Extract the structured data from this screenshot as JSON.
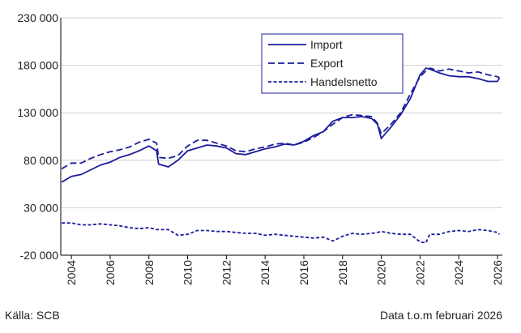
{
  "chart_data": {
    "type": "line",
    "x": [
      2003.5,
      2004,
      2004.5,
      2005,
      2005.5,
      2006,
      2006.5,
      2007,
      2007.5,
      2008,
      2008.4,
      2008.5,
      2009,
      2009.5,
      2010,
      2010.5,
      2011,
      2011.5,
      2012,
      2012.5,
      2013,
      2013.5,
      2014,
      2014.5,
      2015,
      2015.5,
      2016,
      2016.5,
      2017,
      2017.5,
      2018,
      2018.5,
      2019,
      2019.5,
      2019.8,
      2020,
      2020.5,
      2021,
      2021.5,
      2022,
      2022.3,
      2022.5,
      2023,
      2023.5,
      2024,
      2024.5,
      2025,
      2025.5,
      2026,
      2026.1
    ],
    "series": [
      {
        "name": "Import",
        "color": "#1c1c9c",
        "dash": "solid",
        "values": [
          57000,
          63000,
          65000,
          70000,
          75000,
          78000,
          83000,
          86000,
          90000,
          95000,
          90000,
          76000,
          73000,
          80000,
          90000,
          93000,
          96000,
          95000,
          93000,
          87000,
          86000,
          89000,
          92000,
          94000,
          97000,
          96000,
          100000,
          106000,
          110000,
          121000,
          125000,
          125000,
          126000,
          124000,
          118000,
          103000,
          115000,
          128000,
          145000,
          170000,
          177000,
          176000,
          172000,
          169000,
          168000,
          168000,
          166000,
          163000,
          163000,
          167000
        ]
      },
      {
        "name": "Export",
        "color": "#1c1c9c",
        "dash": "dashed",
        "values": [
          71000,
          77000,
          77000,
          82000,
          86000,
          89000,
          91000,
          94000,
          99000,
          102000,
          98000,
          83000,
          82000,
          85000,
          95000,
          101000,
          101000,
          98000,
          95000,
          90000,
          89000,
          92000,
          94000,
          97000,
          98000,
          96000,
          99000,
          104000,
          110000,
          118000,
          125000,
          128000,
          127000,
          126000,
          119000,
          108000,
          118000,
          130000,
          150000,
          168000,
          174000,
          177000,
          174000,
          176000,
          174000,
          172000,
          173000,
          170000,
          168000,
          167000
        ]
      },
      {
        "name": "Handelsnetto",
        "color": "#1c1c9c",
        "dash": "dotted",
        "values": [
          14000,
          14000,
          12000,
          12000,
          13000,
          12000,
          11000,
          9000,
          8000,
          9000,
          7000,
          7000,
          7000,
          1000,
          2000,
          6000,
          6000,
          5000,
          5000,
          4000,
          3000,
          3000,
          1000,
          2000,
          1000,
          0,
          -1000,
          -2000,
          -1000,
          -5000,
          0,
          3000,
          2000,
          3000,
          4000,
          5000,
          3000,
          2000,
          2000,
          -6000,
          -7000,
          2000,
          2000,
          5000,
          6000,
          5000,
          7000,
          6000,
          4000,
          2000
        ]
      }
    ],
    "xlim": [
      2003.45,
      2026.25
    ],
    "xticks": [
      2004,
      2006,
      2008,
      2010,
      2012,
      2014,
      2016,
      2018,
      2020,
      2022,
      2024,
      2026
    ],
    "ylim": [
      -20000,
      230000
    ],
    "yticks": [
      {
        "value": -20000,
        "label": "-20 000"
      },
      {
        "value": 30000,
        "label": "30 000"
      },
      {
        "value": 80000,
        "label": "80 000"
      },
      {
        "value": 130000,
        "label": "130 000"
      },
      {
        "value": 180000,
        "label": "180 000"
      },
      {
        "value": 230000,
        "label": "230 000"
      }
    ],
    "grid": true,
    "legend": "top-center",
    "source": "Källa: SCB",
    "note": "Data t.o.m februari 2026"
  }
}
